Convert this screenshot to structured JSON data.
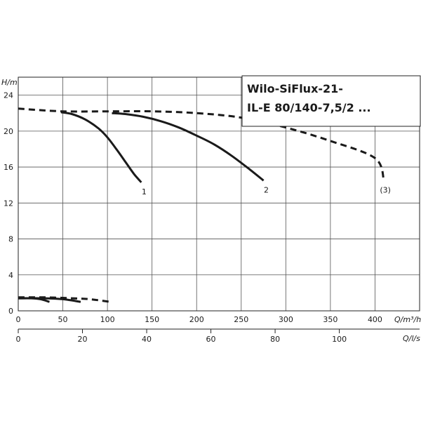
{
  "chart_data": {
    "type": "line",
    "title_lines": [
      "Wilo-SiFlux-21-",
      "IL-E 80/140-7,5/2 ..."
    ],
    "ylabel": "H/m",
    "xlabel": "Q/m³/h",
    "x2label": "Q/l/s",
    "xlim": [
      0,
      450
    ],
    "ylim": [
      0,
      26
    ],
    "x2lim": [
      0,
      125
    ],
    "x_ticks": [
      0,
      50,
      100,
      150,
      200,
      250,
      300,
      350,
      400
    ],
    "y_ticks": [
      0,
      4,
      8,
      12,
      16,
      20,
      24
    ],
    "x2_ticks": [
      0,
      20,
      40,
      60,
      80,
      100
    ],
    "grid": true,
    "series": [
      {
        "name": "1",
        "style": "solid",
        "x": [
          48,
          60,
          75,
          90,
          100,
          110,
          120,
          130,
          138
        ],
        "y": [
          22.1,
          21.9,
          21.3,
          20.3,
          19.3,
          18.0,
          16.6,
          15.2,
          14.3
        ]
      },
      {
        "name": "2",
        "style": "solid",
        "x": [
          105,
          120,
          140,
          160,
          180,
          200,
          220,
          240,
          260,
          275
        ],
        "y": [
          22.0,
          21.9,
          21.6,
          21.1,
          20.4,
          19.5,
          18.5,
          17.2,
          15.7,
          14.5
        ]
      },
      {
        "name": "(3)",
        "style": "dashed",
        "x": [
          0,
          50,
          100,
          150,
          200,
          250,
          300,
          350,
          400,
          410
        ],
        "y": [
          22.5,
          22.2,
          22.2,
          22.2,
          22.0,
          21.5,
          20.4,
          18.9,
          17.0,
          14.5
        ]
      },
      {
        "name": "",
        "style": "solid",
        "x": [
          0,
          15,
          25,
          35
        ],
        "y": [
          1.4,
          1.4,
          1.3,
          1.0
        ]
      },
      {
        "name": "",
        "style": "solid",
        "x": [
          0,
          30,
          50,
          70
        ],
        "y": [
          1.4,
          1.4,
          1.3,
          1.0
        ]
      },
      {
        "name": "",
        "style": "dashed",
        "x": [
          0,
          30,
          60,
          80,
          103
        ],
        "y": [
          1.5,
          1.5,
          1.4,
          1.3,
          1.0
        ]
      }
    ]
  }
}
